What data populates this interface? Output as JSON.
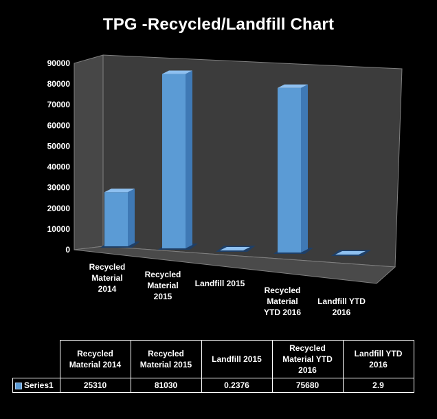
{
  "chart_data": {
    "type": "bar",
    "title": "TPG  -Recycled/Landfill Chart",
    "categories": [
      "Recycled Material 2014",
      "Recycled Material 2015",
      "Landfill 2015",
      "Recycled Material YTD 2016",
      "Landfill  YTD 2016"
    ],
    "category_label_lines": [
      [
        "Recycled",
        "Material",
        "2014"
      ],
      [
        "Recycled",
        "Material",
        "2015"
      ],
      [
        "Landfill 2015"
      ],
      [
        "Recycled",
        "Material",
        "YTD 2016"
      ],
      [
        "Landfill  YTD",
        "2016"
      ]
    ],
    "series": [
      {
        "name": "Series1",
        "values": [
          25310,
          81030,
          0.2376,
          75680,
          2.9
        ]
      }
    ],
    "value_labels": [
      "25310",
      "81030",
      "0.2376",
      "75680",
      "2.9"
    ],
    "ylim": [
      0,
      90000
    ],
    "yticks": [
      0,
      10000,
      20000,
      30000,
      40000,
      50000,
      60000,
      70000,
      80000,
      90000
    ],
    "grid": false,
    "style": "3d-column",
    "legend": "in data table",
    "colors": {
      "bar": "#5b9bd5",
      "wall": "#3c3c3c",
      "floor": "#4a4a4a"
    }
  },
  "table": {
    "headers": [
      "Recycled Material 2014",
      "Recycled Material 2015",
      "Landfill 2015",
      "Recycled Material YTD 2016",
      "Landfill YTD 2016"
    ],
    "series_label": "Series1",
    "values": [
      "25310",
      "81030",
      "0.2376",
      "75680",
      "2.9"
    ]
  }
}
